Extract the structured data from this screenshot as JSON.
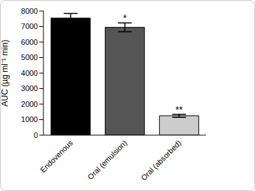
{
  "chart_data": {
    "type": "bar",
    "categories": [
      "Endovenous",
      "Oral (emulsion)",
      "Oral (absorbed)"
    ],
    "values": [
      7550,
      6950,
      1250
    ],
    "errors": [
      300,
      280,
      100
    ],
    "colors": [
      "#000000",
      "#555555",
      "#cccccc"
    ],
    "y_label": "AUC (µg ml⁻¹ min)",
    "ylim": [
      0,
      8000
    ],
    "yticks": [
      0,
      1000,
      2000,
      3000,
      4000,
      5000,
      6000,
      7000,
      8000
    ],
    "annotations": [
      {
        "category": "Oral (emulsion)",
        "text": "*"
      },
      {
        "category": "Oral (absorbed)",
        "text": "**"
      }
    ]
  }
}
